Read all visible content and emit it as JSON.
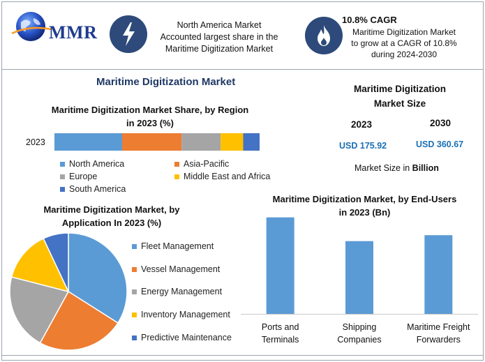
{
  "header": {
    "logo_text": "MMR",
    "info1": [
      "North America Market",
      "Accounted largest share in the",
      "Maritime Digitization Market"
    ],
    "info2_title": "10.8% CAGR",
    "info2": [
      "Maritime Digitization Market",
      "to grow at a CAGR of 10.8%",
      "during 2024-2030"
    ],
    "icon1": "lightning-bolt-icon",
    "icon2": "flame-icon"
  },
  "main_title": "Maritime Digitization Market",
  "market_size": {
    "title_lines": [
      "Maritime Digitization",
      "Market Size"
    ],
    "year1": "2023",
    "year2": "2030",
    "value1": "USD 175.92",
    "value2": "USD 360.67",
    "note_prefix": "Market Size in ",
    "note_bold": "Billion"
  },
  "chart_data": [
    {
      "type": "bar",
      "orientation": "horizontal-stacked",
      "title": "Maritime Digitization Market Share, by Region in 2023 (%)",
      "categories": [
        "2023"
      ],
      "series": [
        {
          "name": "North America",
          "values": [
            33
          ],
          "color": "#5b9bd5"
        },
        {
          "name": "Asia-Pacific",
          "values": [
            29
          ],
          "color": "#ed7d31"
        },
        {
          "name": "Europe",
          "values": [
            19
          ],
          "color": "#a5a5a5"
        },
        {
          "name": "Middle East and Africa",
          "values": [
            11
          ],
          "color": "#ffc000"
        },
        {
          "name": "South America",
          "values": [
            8
          ],
          "color": "#4472c4"
        }
      ],
      "legend_position": "bottom"
    },
    {
      "type": "pie",
      "title": "Maritime Digitization Market, by Application In 2023 (%)",
      "labels": [
        "Fleet Management",
        "Vessel Management",
        "Energy Management",
        "Inventory Management",
        "Predictive Maintenance"
      ],
      "values": [
        34,
        24,
        21,
        14,
        7
      ],
      "colors": [
        "#5b9bd5",
        "#ed7d31",
        "#a5a5a5",
        "#ffc000",
        "#4472c4"
      ],
      "legend_position": "right"
    },
    {
      "type": "bar",
      "title": "Maritime Digitization Market, by End-Users in 2023 (Bn)",
      "categories": [
        "Ports and Terminals",
        "Shipping Companies",
        "Maritime Freight Forwarders"
      ],
      "category_lines": [
        [
          "Ports and",
          "Terminals"
        ],
        [
          "Shipping",
          "Companies"
        ],
        [
          "Maritime Freight",
          "Forwarders"
        ]
      ],
      "values": [
        65,
        49,
        53
      ],
      "ylim": [
        0,
        70
      ],
      "color": "#5b9bd5",
      "grid": false
    }
  ]
}
